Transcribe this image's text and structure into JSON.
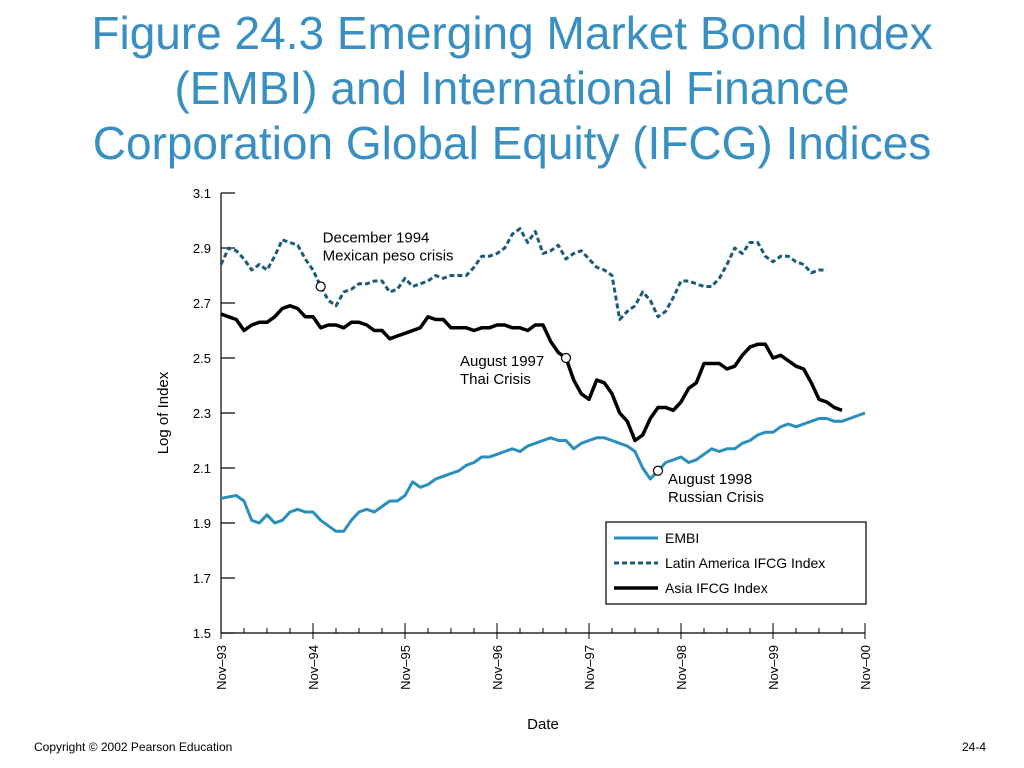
{
  "slide": {
    "title_lines": [
      "Figure 24.3  Emerging Market Bond Index",
      "(EMBI) and International Finance",
      "Corporation Global Equity (IFCG) Indices"
    ],
    "footer_left": "Copyright © 2002 Pearson Education",
    "footer_right": "24-4"
  },
  "colors": {
    "title": "#3a8fc2",
    "embi": "#2a8fbd",
    "latin_america": "#1c5a7a",
    "asia": "#000000"
  },
  "chart_data": {
    "type": "line",
    "xlabel": "Date",
    "ylabel": "Log of Index",
    "ylim": [
      1.5,
      3.1
    ],
    "yticks": [
      1.5,
      1.7,
      1.9,
      2.1,
      2.3,
      2.5,
      2.7,
      2.9,
      3.1
    ],
    "xlim": [
      "1993-11",
      "2000-11"
    ],
    "xtick_labels": [
      "Nov–93",
      "Nov–94",
      "Nov–95",
      "Nov–96",
      "Nov–97",
      "Nov–98",
      "Nov–99",
      "Nov–00"
    ],
    "legend_position": "lower-right",
    "annotations": [
      {
        "lines": [
          "December 1994",
          "Mexican peso crisis"
        ],
        "series": "Latin America IFCG Index",
        "x": "1994-12",
        "y": 2.76
      },
      {
        "lines": [
          "August 1997",
          "Thai Crisis"
        ],
        "series": "Asia IFCG Index",
        "x": "1997-08",
        "y": 2.5
      },
      {
        "lines": [
          "August 1998",
          "Russian Crisis"
        ],
        "series": "EMBI",
        "x": "1998-08",
        "y": 2.09
      }
    ],
    "series": [
      {
        "name": "EMBI",
        "style": "solid",
        "points": [
          [
            "1993-11",
            1.99
          ],
          [
            "1994-01",
            2.0
          ],
          [
            "1994-02",
            1.98
          ],
          [
            "1994-03",
            1.91
          ],
          [
            "1994-04",
            1.9
          ],
          [
            "1994-05",
            1.93
          ],
          [
            "1994-06",
            1.9
          ],
          [
            "1994-07",
            1.91
          ],
          [
            "1994-08",
            1.94
          ],
          [
            "1994-09",
            1.95
          ],
          [
            "1994-10",
            1.94
          ],
          [
            "1994-11",
            1.94
          ],
          [
            "1994-12",
            1.91
          ],
          [
            "1995-01",
            1.89
          ],
          [
            "1995-02",
            1.87
          ],
          [
            "1995-03",
            1.87
          ],
          [
            "1995-04",
            1.91
          ],
          [
            "1995-05",
            1.94
          ],
          [
            "1995-06",
            1.95
          ],
          [
            "1995-07",
            1.94
          ],
          [
            "1995-08",
            1.96
          ],
          [
            "1995-09",
            1.98
          ],
          [
            "1995-10",
            1.98
          ],
          [
            "1995-11",
            2.0
          ],
          [
            "1995-12",
            2.05
          ],
          [
            "1996-01",
            2.03
          ],
          [
            "1996-02",
            2.04
          ],
          [
            "1996-03",
            2.06
          ],
          [
            "1996-04",
            2.07
          ],
          [
            "1996-05",
            2.08
          ],
          [
            "1996-06",
            2.09
          ],
          [
            "1996-07",
            2.11
          ],
          [
            "1996-08",
            2.12
          ],
          [
            "1996-09",
            2.14
          ],
          [
            "1996-10",
            2.14
          ],
          [
            "1996-11",
            2.15
          ],
          [
            "1996-12",
            2.16
          ],
          [
            "1997-01",
            2.17
          ],
          [
            "1997-02",
            2.16
          ],
          [
            "1997-03",
            2.18
          ],
          [
            "1997-04",
            2.19
          ],
          [
            "1997-05",
            2.2
          ],
          [
            "1997-06",
            2.21
          ],
          [
            "1997-07",
            2.2
          ],
          [
            "1997-08",
            2.2
          ],
          [
            "1997-09",
            2.17
          ],
          [
            "1997-10",
            2.19
          ],
          [
            "1997-11",
            2.2
          ],
          [
            "1997-12",
            2.21
          ],
          [
            "1998-01",
            2.21
          ],
          [
            "1998-02",
            2.2
          ],
          [
            "1998-03",
            2.19
          ],
          [
            "1998-04",
            2.18
          ],
          [
            "1998-05",
            2.16
          ],
          [
            "1998-06",
            2.1
          ],
          [
            "1998-07",
            2.06
          ],
          [
            "1998-08",
            2.09
          ],
          [
            "1998-09",
            2.12
          ],
          [
            "1998-10",
            2.13
          ],
          [
            "1998-11",
            2.14
          ],
          [
            "1998-12",
            2.12
          ],
          [
            "1999-01",
            2.13
          ],
          [
            "1999-02",
            2.15
          ],
          [
            "1999-03",
            2.17
          ],
          [
            "1999-04",
            2.16
          ],
          [
            "1999-05",
            2.17
          ],
          [
            "1999-06",
            2.17
          ],
          [
            "1999-07",
            2.19
          ],
          [
            "1999-08",
            2.2
          ],
          [
            "1999-09",
            2.22
          ],
          [
            "1999-10",
            2.23
          ],
          [
            "1999-11",
            2.23
          ],
          [
            "1999-12",
            2.25
          ],
          [
            "2000-01",
            2.26
          ],
          [
            "2000-02",
            2.25
          ],
          [
            "2000-03",
            2.26
          ],
          [
            "2000-04",
            2.27
          ],
          [
            "2000-05",
            2.28
          ],
          [
            "2000-06",
            2.28
          ],
          [
            "2000-07",
            2.27
          ],
          [
            "2000-08",
            2.27
          ],
          [
            "2000-09",
            2.28
          ],
          [
            "2000-11",
            2.3
          ]
        ]
      },
      {
        "name": "Latin America IFCG Index",
        "style": "dashed",
        "points": [
          [
            "1993-11",
            2.84
          ],
          [
            "1993-12",
            2.9
          ],
          [
            "1994-01",
            2.89
          ],
          [
            "1994-02",
            2.86
          ],
          [
            "1994-03",
            2.82
          ],
          [
            "1994-04",
            2.84
          ],
          [
            "1994-05",
            2.82
          ],
          [
            "1994-06",
            2.87
          ],
          [
            "1994-07",
            2.93
          ],
          [
            "1994-08",
            2.92
          ],
          [
            "1994-09",
            2.91
          ],
          [
            "1994-10",
            2.86
          ],
          [
            "1994-11",
            2.82
          ],
          [
            "1994-12",
            2.76
          ],
          [
            "1995-01",
            2.71
          ],
          [
            "1995-02",
            2.69
          ],
          [
            "1995-03",
            2.74
          ],
          [
            "1995-04",
            2.75
          ],
          [
            "1995-05",
            2.77
          ],
          [
            "1995-06",
            2.77
          ],
          [
            "1995-07",
            2.78
          ],
          [
            "1995-08",
            2.78
          ],
          [
            "1995-09",
            2.74
          ],
          [
            "1995-10",
            2.75
          ],
          [
            "1995-11",
            2.79
          ],
          [
            "1995-12",
            2.76
          ],
          [
            "1996-01",
            2.77
          ],
          [
            "1996-02",
            2.78
          ],
          [
            "1996-03",
            2.8
          ],
          [
            "1996-04",
            2.79
          ],
          [
            "1996-05",
            2.8
          ],
          [
            "1996-06",
            2.8
          ],
          [
            "1996-07",
            2.8
          ],
          [
            "1996-08",
            2.83
          ],
          [
            "1996-09",
            2.87
          ],
          [
            "1996-10",
            2.87
          ],
          [
            "1996-11",
            2.88
          ],
          [
            "1996-12",
            2.9
          ],
          [
            "1997-01",
            2.95
          ],
          [
            "1997-02",
            2.97
          ],
          [
            "1997-03",
            2.92
          ],
          [
            "1997-04",
            2.96
          ],
          [
            "1997-05",
            2.88
          ],
          [
            "1997-06",
            2.89
          ],
          [
            "1997-07",
            2.91
          ],
          [
            "1997-08",
            2.86
          ],
          [
            "1997-09",
            2.88
          ],
          [
            "1997-10",
            2.89
          ],
          [
            "1997-11",
            2.86
          ],
          [
            "1997-12",
            2.83
          ],
          [
            "1998-01",
            2.82
          ],
          [
            "1998-02",
            2.8
          ],
          [
            "1998-03",
            2.64
          ],
          [
            "1998-04",
            2.67
          ],
          [
            "1998-05",
            2.69
          ],
          [
            "1998-06",
            2.74
          ],
          [
            "1998-07",
            2.71
          ],
          [
            "1998-08",
            2.65
          ],
          [
            "1998-09",
            2.67
          ],
          [
            "1998-10",
            2.72
          ],
          [
            "1998-11",
            2.78
          ],
          [
            "1998-12",
            2.78
          ],
          [
            "1999-01",
            2.77
          ],
          [
            "1999-02",
            2.76
          ],
          [
            "1999-03",
            2.76
          ],
          [
            "1999-04",
            2.79
          ],
          [
            "1999-05",
            2.84
          ],
          [
            "1999-06",
            2.9
          ],
          [
            "1999-07",
            2.88
          ],
          [
            "1999-08",
            2.92
          ],
          [
            "1999-09",
            2.92
          ],
          [
            "1999-10",
            2.87
          ],
          [
            "1999-11",
            2.85
          ],
          [
            "1999-12",
            2.87
          ],
          [
            "2000-01",
            2.87
          ],
          [
            "2000-02",
            2.85
          ],
          [
            "2000-03",
            2.84
          ],
          [
            "2000-04",
            2.81
          ],
          [
            "2000-05",
            2.82
          ],
          [
            "2000-06",
            2.82
          ]
        ]
      },
      {
        "name": "Asia IFCG Index",
        "style": "solid",
        "points": [
          [
            "1993-11",
            2.66
          ],
          [
            "1993-12",
            2.65
          ],
          [
            "1994-01",
            2.64
          ],
          [
            "1994-02",
            2.6
          ],
          [
            "1994-03",
            2.62
          ],
          [
            "1994-04",
            2.63
          ],
          [
            "1994-05",
            2.63
          ],
          [
            "1994-06",
            2.65
          ],
          [
            "1994-07",
            2.68
          ],
          [
            "1994-08",
            2.69
          ],
          [
            "1994-09",
            2.68
          ],
          [
            "1994-10",
            2.65
          ],
          [
            "1994-11",
            2.65
          ],
          [
            "1994-12",
            2.61
          ],
          [
            "1995-01",
            2.62
          ],
          [
            "1995-02",
            2.62
          ],
          [
            "1995-03",
            2.61
          ],
          [
            "1995-04",
            2.63
          ],
          [
            "1995-05",
            2.63
          ],
          [
            "1995-06",
            2.62
          ],
          [
            "1995-07",
            2.6
          ],
          [
            "1995-08",
            2.6
          ],
          [
            "1995-09",
            2.57
          ],
          [
            "1995-10",
            2.58
          ],
          [
            "1995-11",
            2.59
          ],
          [
            "1995-12",
            2.6
          ],
          [
            "1996-01",
            2.61
          ],
          [
            "1996-02",
            2.65
          ],
          [
            "1996-03",
            2.64
          ],
          [
            "1996-04",
            2.64
          ],
          [
            "1996-05",
            2.61
          ],
          [
            "1996-06",
            2.61
          ],
          [
            "1996-07",
            2.61
          ],
          [
            "1996-08",
            2.6
          ],
          [
            "1996-09",
            2.61
          ],
          [
            "1996-10",
            2.61
          ],
          [
            "1996-11",
            2.62
          ],
          [
            "1996-12",
            2.62
          ],
          [
            "1997-01",
            2.61
          ],
          [
            "1997-02",
            2.61
          ],
          [
            "1997-03",
            2.6
          ],
          [
            "1997-04",
            2.62
          ],
          [
            "1997-05",
            2.62
          ],
          [
            "1997-06",
            2.56
          ],
          [
            "1997-07",
            2.52
          ],
          [
            "1997-08",
            2.5
          ],
          [
            "1997-09",
            2.42
          ],
          [
            "1997-10",
            2.37
          ],
          [
            "1997-11",
            2.35
          ],
          [
            "1997-12",
            2.42
          ],
          [
            "1998-01",
            2.41
          ],
          [
            "1998-02",
            2.37
          ],
          [
            "1998-03",
            2.3
          ],
          [
            "1998-04",
            2.27
          ],
          [
            "1998-05",
            2.2
          ],
          [
            "1998-06",
            2.22
          ],
          [
            "1998-07",
            2.28
          ],
          [
            "1998-08",
            2.32
          ],
          [
            "1998-09",
            2.32
          ],
          [
            "1998-10",
            2.31
          ],
          [
            "1998-11",
            2.34
          ],
          [
            "1998-12",
            2.39
          ],
          [
            "1999-01",
            2.41
          ],
          [
            "1999-02",
            2.48
          ],
          [
            "1999-03",
            2.48
          ],
          [
            "1999-04",
            2.48
          ],
          [
            "1999-05",
            2.46
          ],
          [
            "1999-06",
            2.47
          ],
          [
            "1999-07",
            2.51
          ],
          [
            "1999-08",
            2.54
          ],
          [
            "1999-09",
            2.55
          ],
          [
            "1999-10",
            2.55
          ],
          [
            "1999-11",
            2.5
          ],
          [
            "1999-12",
            2.51
          ],
          [
            "2000-01",
            2.49
          ],
          [
            "2000-02",
            2.47
          ],
          [
            "2000-03",
            2.46
          ],
          [
            "2000-04",
            2.41
          ],
          [
            "2000-05",
            2.35
          ],
          [
            "2000-06",
            2.34
          ],
          [
            "2000-07",
            2.32
          ],
          [
            "2000-08",
            2.31
          ]
        ]
      }
    ]
  }
}
